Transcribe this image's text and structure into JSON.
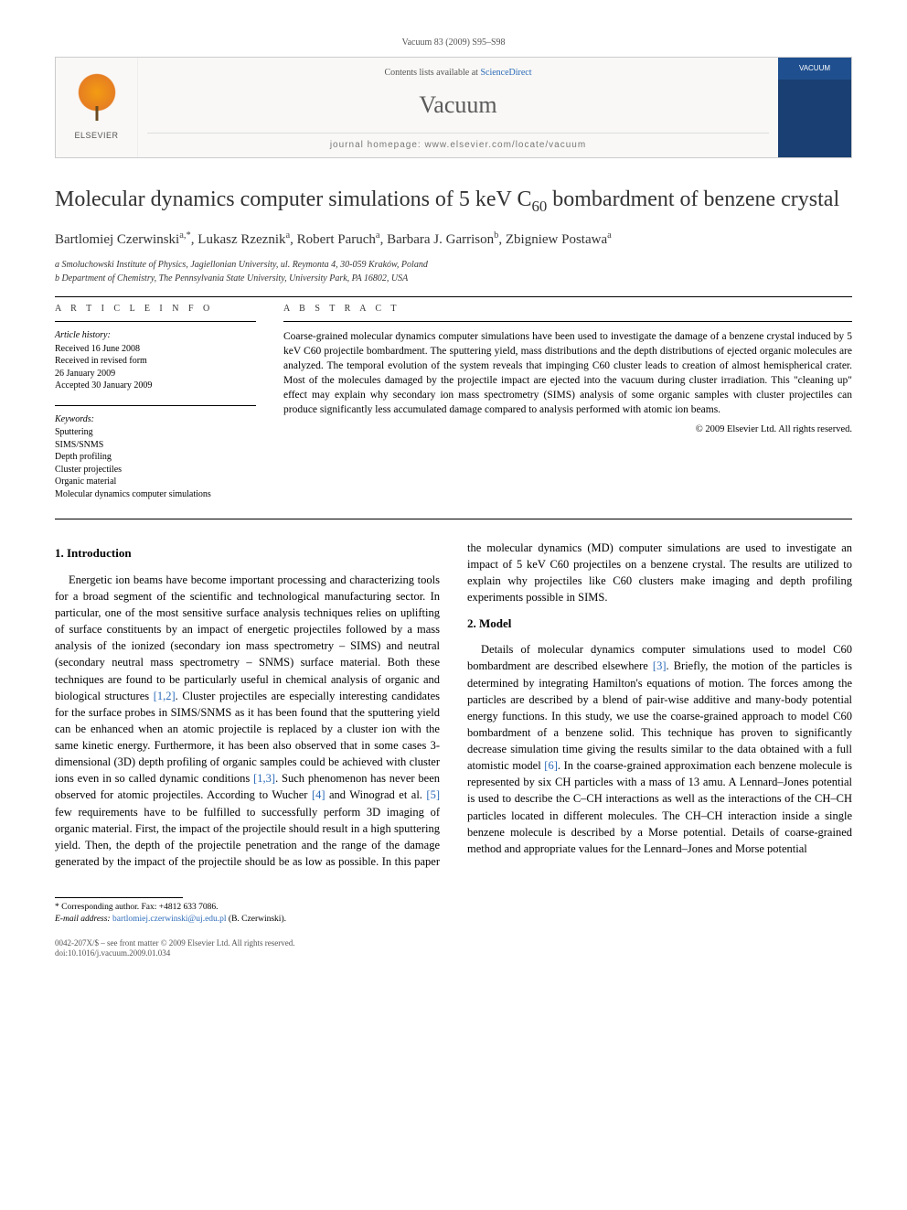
{
  "page_header": "Vacuum 83 (2009) S95–S98",
  "banner": {
    "contents_prefix": "Contents lists available at ",
    "contents_link": "ScienceDirect",
    "journal": "Vacuum",
    "homepage_label": "journal homepage: www.elsevier.com/locate/vacuum",
    "elsevier": "ELSEVIER",
    "cover_text": "VACUUM"
  },
  "title_parts": {
    "a": "Molecular dynamics computer simulations of 5 keV C",
    "sub": "60",
    "b": " bombardment of benzene crystal"
  },
  "authors": "Bartlomiej Czerwinski",
  "author_sup_1": "a,*",
  "author_2": ", Lukasz Rzeznik",
  "author_sup_2": "a",
  "author_3": ", Robert Paruch",
  "author_sup_3": "a",
  "author_4": ", Barbara J. Garrison",
  "author_sup_4": "b",
  "author_5": ", Zbigniew Postawa",
  "author_sup_5": "a",
  "affiliations": {
    "a": "a Smoluchowski Institute of Physics, Jagiellonian University, ul. Reymonta 4, 30-059 Kraków, Poland",
    "b": "b Department of Chemistry, The Pennsylvania State University, University Park, PA 16802, USA"
  },
  "labels": {
    "article_info": "A R T I C L E   I N F O",
    "abstract": "A B S T R A C T"
  },
  "history": {
    "head": "Article history:",
    "received": "Received 16 June 2008",
    "revised1": "Received in revised form",
    "revised2": "26 January 2009",
    "accepted": "Accepted 30 January 2009"
  },
  "keywords": {
    "head": "Keywords:",
    "k1": "Sputtering",
    "k2": "SIMS/SNMS",
    "k3": "Depth profiling",
    "k4": "Cluster projectiles",
    "k5": "Organic material",
    "k6": "Molecular dynamics computer simulations"
  },
  "abstract_text": "Coarse-grained molecular dynamics computer simulations have been used to investigate the damage of a benzene crystal induced by 5 keV C60 projectile bombardment. The sputtering yield, mass distributions and the depth distributions of ejected organic molecules are analyzed. The temporal evolution of the system reveals that impinging C60 cluster leads to creation of almost hemispherical crater. Most of the molecules damaged by the projectile impact are ejected into the vacuum during cluster irradiation. This \"cleaning up\" effect may explain why secondary ion mass spectrometry (SIMS) analysis of some organic samples with cluster projectiles can produce significantly less accumulated damage compared to analysis performed with atomic ion beams.",
  "copyright": "© 2009 Elsevier Ltd. All rights reserved.",
  "sections": {
    "intro_head": "1. Introduction",
    "intro_body_a": "Energetic ion beams have become important processing and characterizing tools for a broad segment of the scientific and technological manufacturing sector. In particular, one of the most sensitive surface analysis techniques relies on uplifting of surface constituents by an impact of energetic projectiles followed by a mass analysis of the ionized (secondary ion mass spectrometry – SIMS) and neutral (secondary neutral mass spectrometry – SNMS) surface material. Both these techniques are found to be particularly useful in chemical analysis of organic and biological structures ",
    "intro_ref_1": "[1,2]",
    "intro_body_b": ". Cluster projectiles are especially interesting candidates for the surface probes in SIMS/SNMS as it has been found that the sputtering yield can be enhanced when an atomic projectile is replaced by a cluster ion with the same kinetic energy. Furthermore, it has been also observed that in some cases 3-dimensional (3D) depth profiling of organic samples could be achieved with cluster ions even in so called dynamic conditions ",
    "intro_ref_2": "[1,3]",
    "intro_body_c": ". Such phenomenon has never been observed for atomic projectiles. According to Wucher ",
    "intro_ref_3": "[4]",
    "intro_body_d": " and Winograd et al. ",
    "intro_ref_4": "[5]",
    "intro_body_e": " few requirements have to be fulfilled to successfully perform 3D imaging of organic material. First, the impact of the projectile should result in a high sputtering yield. Then, the depth of the projectile penetration and the range of the damage generated by the impact of the projectile should be as low as possible. In this paper the molecular dynamics (MD) computer simulations are used to investigate an impact of 5 keV C60 projectiles on a benzene crystal. The results are utilized to explain why projectiles like C60 clusters make imaging and depth profiling experiments possible in SIMS.",
    "model_head": "2. Model",
    "model_body_a": "Details of molecular dynamics computer simulations used to model C60 bombardment are described elsewhere ",
    "model_ref_1": "[3]",
    "model_body_b": ". Briefly, the motion of the particles is determined by integrating Hamilton's equations of motion. The forces among the particles are described by a blend of pair-wise additive and many-body potential energy functions. In this study, we use the coarse-grained approach to model C60 bombardment of a benzene solid. This technique has proven to significantly decrease simulation time giving the results similar to the data obtained with a full atomistic model ",
    "model_ref_2": "[6]",
    "model_body_c": ". In the coarse-grained approximation each benzene molecule is represented by six CH particles with a mass of 13 amu. A Lennard–Jones potential is used to describe the C–CH interactions as well as the interactions of the CH–CH particles located in different molecules. The CH–CH interaction inside a single benzene molecule is described by a Morse potential. Details of coarse-grained method and appropriate values for the Lennard–Jones and Morse potential"
  },
  "footnotes": {
    "corr": "* Corresponding author. Fax: +4812 633 7086.",
    "email_label": "E-mail address: ",
    "email": "bartlomiej.czerwinski@uj.edu.pl",
    "email_tail": " (B. Czerwinski)."
  },
  "bottom": {
    "line1": "0042-207X/$ – see front matter © 2009 Elsevier Ltd. All rights reserved.",
    "line2": "doi:10.1016/j.vacuum.2009.01.034"
  }
}
